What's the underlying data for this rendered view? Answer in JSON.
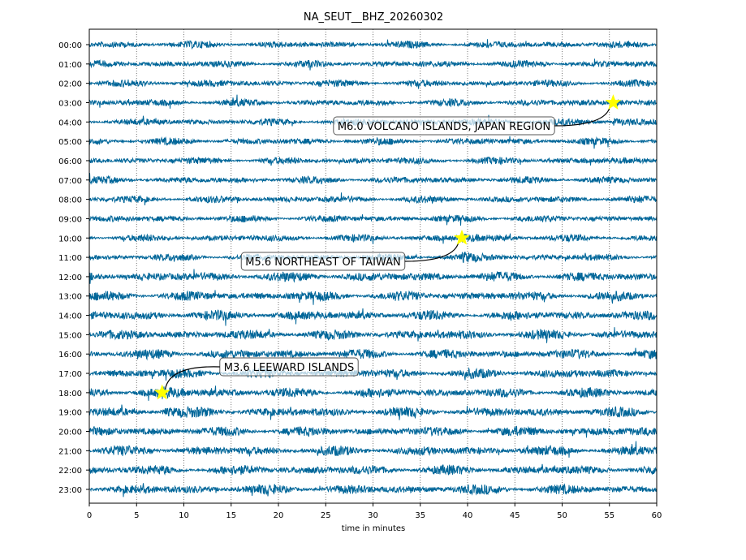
{
  "chart_data": {
    "type": "line",
    "title": "NA_SEUT__BHZ_20260302",
    "xlabel": "time in minutes",
    "ylabel": "",
    "xlim": [
      0,
      60
    ],
    "xticks": [
      "0",
      "5",
      "10",
      "15",
      "20",
      "25",
      "30",
      "35",
      "40",
      "45",
      "50",
      "55",
      "60"
    ],
    "yticks": [
      "00:00",
      "01:00",
      "02:00",
      "03:00",
      "04:00",
      "05:00",
      "06:00",
      "07:00",
      "08:00",
      "09:00",
      "10:00",
      "11:00",
      "12:00",
      "13:00",
      "14:00",
      "15:00",
      "16:00",
      "17:00",
      "18:00",
      "19:00",
      "20:00",
      "21:00",
      "22:00",
      "23:00"
    ],
    "grid": "vertical dotted",
    "trace_color": "#006699",
    "events": [
      {
        "label": "M6.0 VOLCANO ISLANDS, JAPAN REGION",
        "hour": 3,
        "minute": 55.4
      },
      {
        "label": "M5.6 NORTHEAST OF TAIWAN",
        "hour": 10,
        "minute": 39.4
      },
      {
        "label": "M3.6 LEEWARD ISLANDS",
        "hour": 18,
        "minute": 7.7
      }
    ],
    "marker_color": "#ffff00"
  }
}
